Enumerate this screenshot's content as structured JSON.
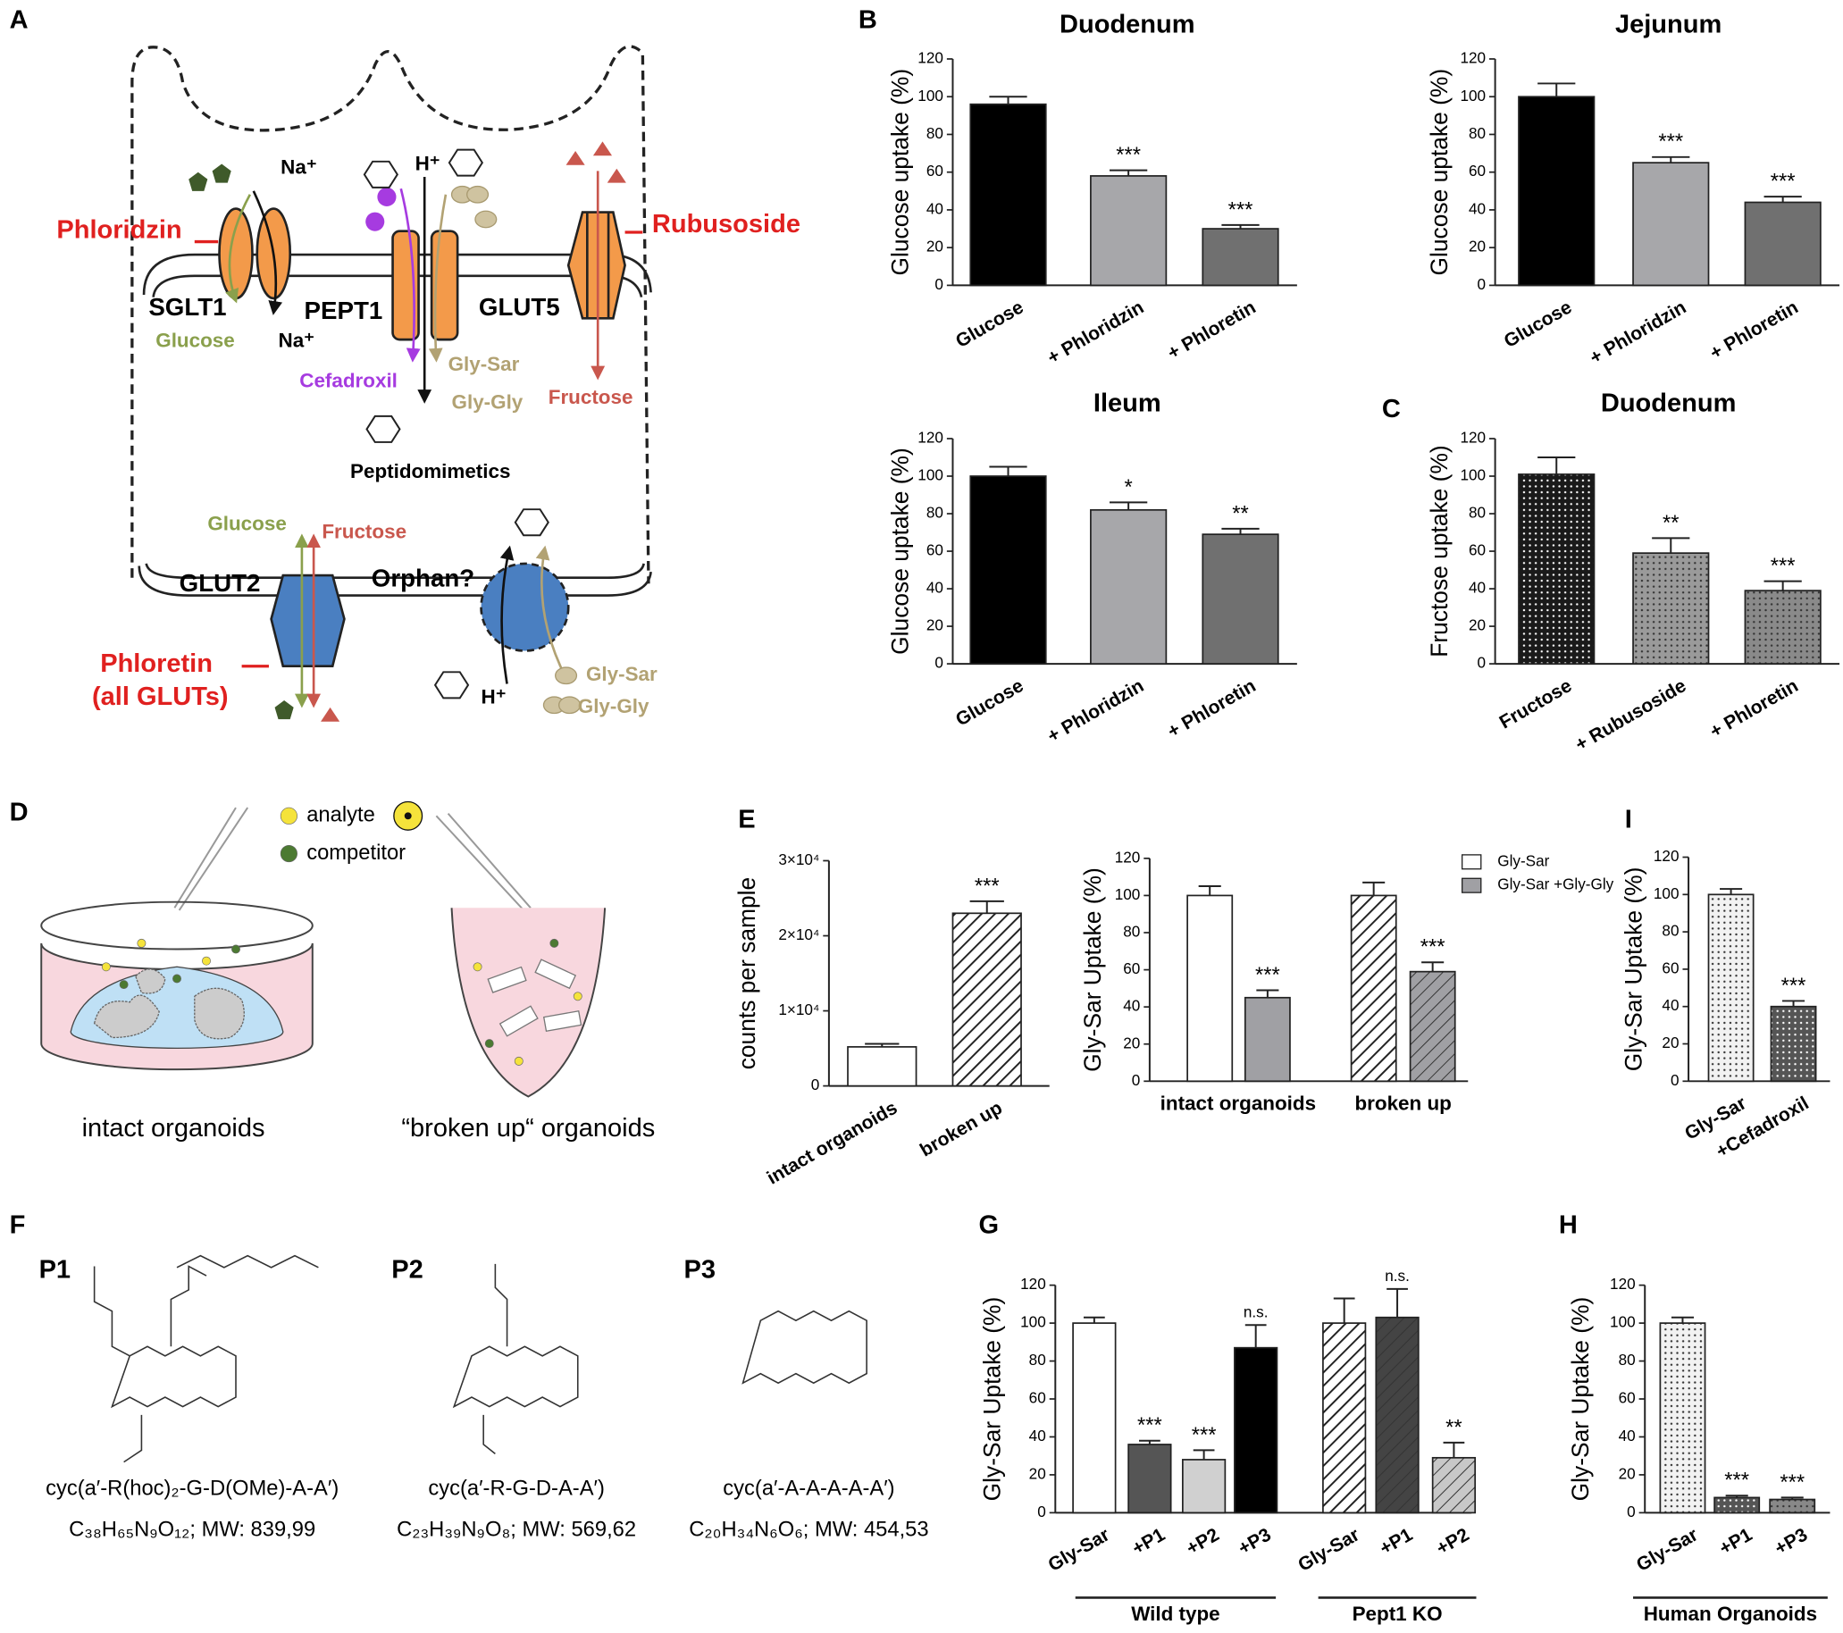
{
  "chart_data": [
    {
      "type": "bar",
      "title": "Duodenum",
      "ylabel": "Glucose uptake (%)",
      "categories": [
        "Glucose",
        "+ Phloridzin",
        "+ Phloretin"
      ],
      "values": [
        96,
        58,
        30
      ],
      "errors": [
        4,
        3,
        2
      ],
      "annotations": [
        null,
        "***",
        "***"
      ],
      "colors": [
        "#000000",
        "#a7a7aa",
        "#707070"
      ],
      "patterns": [
        null,
        null,
        null
      ],
      "ylim": [
        0,
        120
      ],
      "yticks": [
        0,
        20,
        40,
        60,
        80,
        100,
        120
      ]
    },
    {
      "type": "bar",
      "title": "Jejunum",
      "ylabel": "Glucose uptake (%)",
      "categories": [
        "Glucose",
        "+ Phloridzin",
        "+ Phloretin"
      ],
      "values": [
        100,
        65,
        44
      ],
      "errors": [
        7,
        3,
        3
      ],
      "annotations": [
        null,
        "***",
        "***"
      ],
      "colors": [
        "#000000",
        "#a7a7aa",
        "#707070"
      ],
      "patterns": [
        null,
        null,
        null
      ],
      "ylim": [
        0,
        120
      ],
      "yticks": [
        0,
        20,
        40,
        60,
        80,
        100,
        120
      ]
    },
    {
      "type": "bar",
      "title": "Ileum",
      "ylabel": "Glucose uptake (%)",
      "categories": [
        "Glucose",
        "+ Phloridzin",
        "+ Phloretin"
      ],
      "values": [
        100,
        82,
        69
      ],
      "errors": [
        5,
        4,
        3
      ],
      "annotations": [
        null,
        "*",
        "**"
      ],
      "colors": [
        "#000000",
        "#a7a7aa",
        "#707070"
      ],
      "patterns": [
        null,
        null,
        null
      ],
      "ylim": [
        0,
        120
      ],
      "yticks": [
        0,
        20,
        40,
        60,
        80,
        100,
        120
      ]
    },
    {
      "type": "bar",
      "title": "Duodenum",
      "ylabel": "Fructose uptake (%)",
      "categories": [
        "Fructose",
        "+ Rubusoside",
        "+ Phloretin"
      ],
      "values": [
        101,
        59,
        39
      ],
      "errors": [
        9,
        8,
        5
      ],
      "annotations": [
        null,
        "**",
        "***"
      ],
      "colors": [
        "#1a1a1a",
        "#9a9a9a",
        "#8a8a8a"
      ],
      "patterns": [
        "dots",
        "dots",
        "dots"
      ],
      "ylim": [
        0,
        120
      ],
      "yticks": [
        0,
        20,
        40,
        60,
        80,
        100,
        120
      ]
    },
    {
      "type": "bar",
      "ylabel": "counts per sample",
      "categories": [
        "intact organoids",
        "broken up"
      ],
      "values": [
        5200,
        23000
      ],
      "errors": [
        400,
        1600
      ],
      "annotations": [
        null,
        "***"
      ],
      "colors": [
        "#ffffff",
        "#ffffff"
      ],
      "patterns": [
        null,
        "hatch"
      ],
      "ylim": [
        0,
        30000
      ],
      "yticks": [
        0,
        {
          "value": 10000,
          "label": "1×10⁴"
        },
        {
          "value": 20000,
          "label": "2×10⁴"
        },
        {
          "value": 30000,
          "label": "3×10⁴"
        }
      ]
    },
    {
      "type": "grouped_bar",
      "ylabel": "Gly-Sar Uptake (%)",
      "categories": [
        "intact organoids",
        "broken up"
      ],
      "series": [
        {
          "name": "Gly-Sar",
          "color": "#ffffff",
          "values": [
            100,
            100
          ],
          "errors": [
            5,
            7
          ],
          "annotations": [
            null,
            null
          ],
          "patterns": [
            null,
            "hatch"
          ]
        },
        {
          "name": "Gly-Sar +Gly-Gly",
          "color": "#a0a0a4",
          "values": [
            45,
            59
          ],
          "errors": [
            4,
            5
          ],
          "annotations": [
            "***",
            "***"
          ],
          "patterns": [
            null,
            "hatch"
          ]
        }
      ],
      "legend": "upper right",
      "ylim": [
        0,
        120
      ],
      "yticks": [
        0,
        20,
        40,
        60,
        80,
        100,
        120
      ]
    },
    {
      "type": "bar",
      "ylabel": "Gly-Sar Uptake (%)",
      "categories": [
        "Gly-Sar",
        "+Cefadroxil"
      ],
      "values": [
        100,
        40
      ],
      "errors": [
        3,
        3
      ],
      "annotations": [
        null,
        "***"
      ],
      "colors": [
        "#f2f2f2",
        "#555555"
      ],
      "patterns": [
        "dots",
        "dots"
      ],
      "ylim": [
        0,
        120
      ],
      "yticks": [
        0,
        20,
        40,
        60,
        80,
        100,
        120
      ]
    },
    {
      "type": "bar",
      "ylabel": "Gly-Sar Uptake (%)",
      "categories": [
        "Gly-Sar",
        "+P1",
        "+P2",
        "+P3",
        "Gly-Sar",
        "+P1",
        "+P2"
      ],
      "values": [
        100,
        36,
        28,
        87,
        100,
        103,
        29
      ],
      "errors": [
        3,
        2,
        5,
        12,
        13,
        15,
        8
      ],
      "annotations": [
        null,
        "***",
        "***",
        "n.s.",
        null,
        "n.s.",
        "**"
      ],
      "colors": [
        "#ffffff",
        "#555555",
        "#d0d0d0",
        "#000000",
        "#ffffff",
        "#444444",
        "#c8c8c8"
      ],
      "patterns": [
        null,
        null,
        null,
        null,
        "hatch",
        "hatch",
        "hatch"
      ],
      "groups": [
        "Wild type",
        "Pept1 KO"
      ],
      "ylim": [
        0,
        120
      ],
      "yticks": [
        0,
        20,
        40,
        60,
        80,
        100,
        120
      ]
    },
    {
      "type": "bar",
      "ylabel": "Gly-Sar Uptake (%)",
      "categories": [
        "Gly-Sar",
        "+P1",
        "+P3"
      ],
      "values": [
        100,
        8,
        7
      ],
      "errors": [
        3,
        1,
        1
      ],
      "annotations": [
        null,
        "***",
        "***"
      ],
      "colors": [
        "#f2f2f2",
        "#555555",
        "#888888"
      ],
      "patterns": [
        "dots",
        "dots",
        "dots"
      ],
      "groups": [
        "Human Organoids"
      ],
      "ylim": [
        0,
        120
      ],
      "yticks": [
        0,
        20,
        40,
        60,
        80,
        100,
        120
      ]
    }
  ],
  "diagram": {
    "panel_labels": [
      "A",
      "B",
      "C",
      "D",
      "E",
      "F",
      "G",
      "H",
      "I"
    ],
    "transport": {
      "na_top": "Na⁺",
      "h_top": "H⁺",
      "phloridzin": "Phloridzin",
      "rubusoside": "Rubusoside",
      "sglt1": "SGLT1",
      "pept1": "PEPT1",
      "glut5": "GLUT5",
      "glucose_top": "Glucose",
      "na_bottom": "Na⁺",
      "cefadroxil": "Cefadroxil",
      "glysar_top": "Gly-Sar",
      "glygly_top": "Gly-Gly",
      "fructose_top": "Fructose",
      "peptidomimetics": "Peptidomimetics",
      "glucose_bottom": "Glucose",
      "fructose_bottom": "Fructose",
      "glut2": "GLUT2",
      "orphan": "Orphan?",
      "phloretin": "Phloretin",
      "all_gluts": "(all GLUTs)",
      "glysar_bottom": "Gly-Sar",
      "glygly_bottom": "Gly-Gly",
      "h_bottom": "H⁺"
    },
    "assay": {
      "analyte": "analyte",
      "competitor": "competitor",
      "intact": "intact organoids",
      "broken": "“broken up“ organoids"
    },
    "peptides": [
      {
        "label": "P1",
        "name": "cyc(a′-R(hoc)₂-G-D(OMe)-A-A′)",
        "formula": "C₃₈H₆₅N₉O₁₂;  MW: 839,99"
      },
      {
        "label": "P2",
        "name": "cyc(a′-R-G-D-A-A′)",
        "formula": "C₂₃H₃₉N₉O₈;  MW: 569,62"
      },
      {
        "label": "P3",
        "name": "cyc(a′-A-A-A-A-A′)",
        "formula": "C₂₀H₃₄N₆O₆;  MW: 454,53"
      }
    ]
  }
}
